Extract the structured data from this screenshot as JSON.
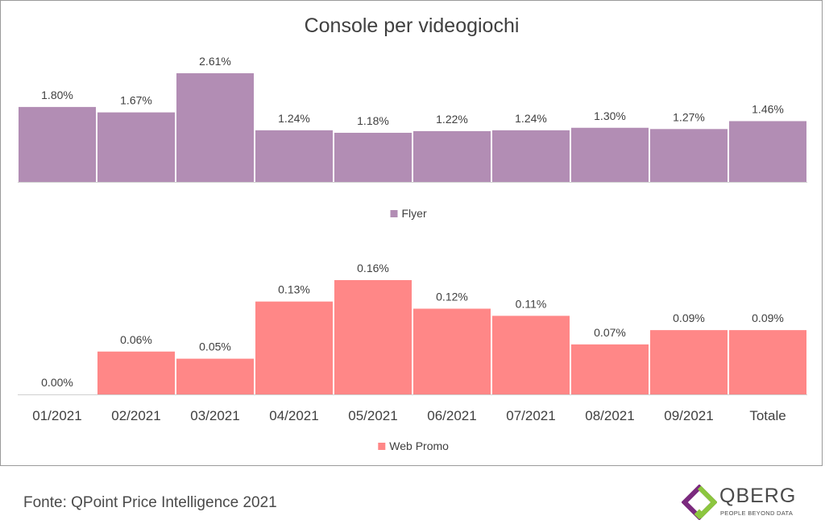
{
  "chart_data": [
    {
      "type": "bar",
      "title": "Console per videogiochi",
      "categories": [
        "01/2021",
        "02/2021",
        "03/2021",
        "04/2021",
        "05/2021",
        "06/2021",
        "07/2021",
        "08/2021",
        "09/2021",
        "Totale"
      ],
      "series": [
        {
          "name": "Flyer",
          "values": [
            1.8,
            1.67,
            2.61,
            1.24,
            1.18,
            1.22,
            1.24,
            1.3,
            1.27,
            1.46
          ],
          "labels": [
            "1.80%",
            "1.67%",
            "2.61%",
            "1.24%",
            "1.18%",
            "1.22%",
            "1.24%",
            "1.30%",
            "1.27%",
            "1.46%"
          ],
          "color": "#b28db4"
        }
      ],
      "legend_position": "bottom",
      "grid": false
    },
    {
      "type": "bar",
      "categories": [
        "01/2021",
        "02/2021",
        "03/2021",
        "04/2021",
        "05/2021",
        "06/2021",
        "07/2021",
        "08/2021",
        "09/2021",
        "Totale"
      ],
      "series": [
        {
          "name": "Web Promo",
          "values": [
            0.0,
            0.06,
            0.05,
            0.13,
            0.16,
            0.12,
            0.11,
            0.07,
            0.09,
            0.09
          ],
          "labels": [
            "0.00%",
            "0.06%",
            "0.05%",
            "0.13%",
            "0.16%",
            "0.12%",
            "0.11%",
            "0.07%",
            "0.09%",
            "0.09%"
          ],
          "color": "#ff8787"
        }
      ],
      "legend_position": "bottom",
      "grid": false
    }
  ],
  "source": "Fonte: QPoint Price Intelligence 2021",
  "logo": {
    "name": "QBERG",
    "tagline": "PEOPLE BEYOND DATA",
    "colors": [
      "#8cc63f",
      "#7b2a7e"
    ]
  }
}
